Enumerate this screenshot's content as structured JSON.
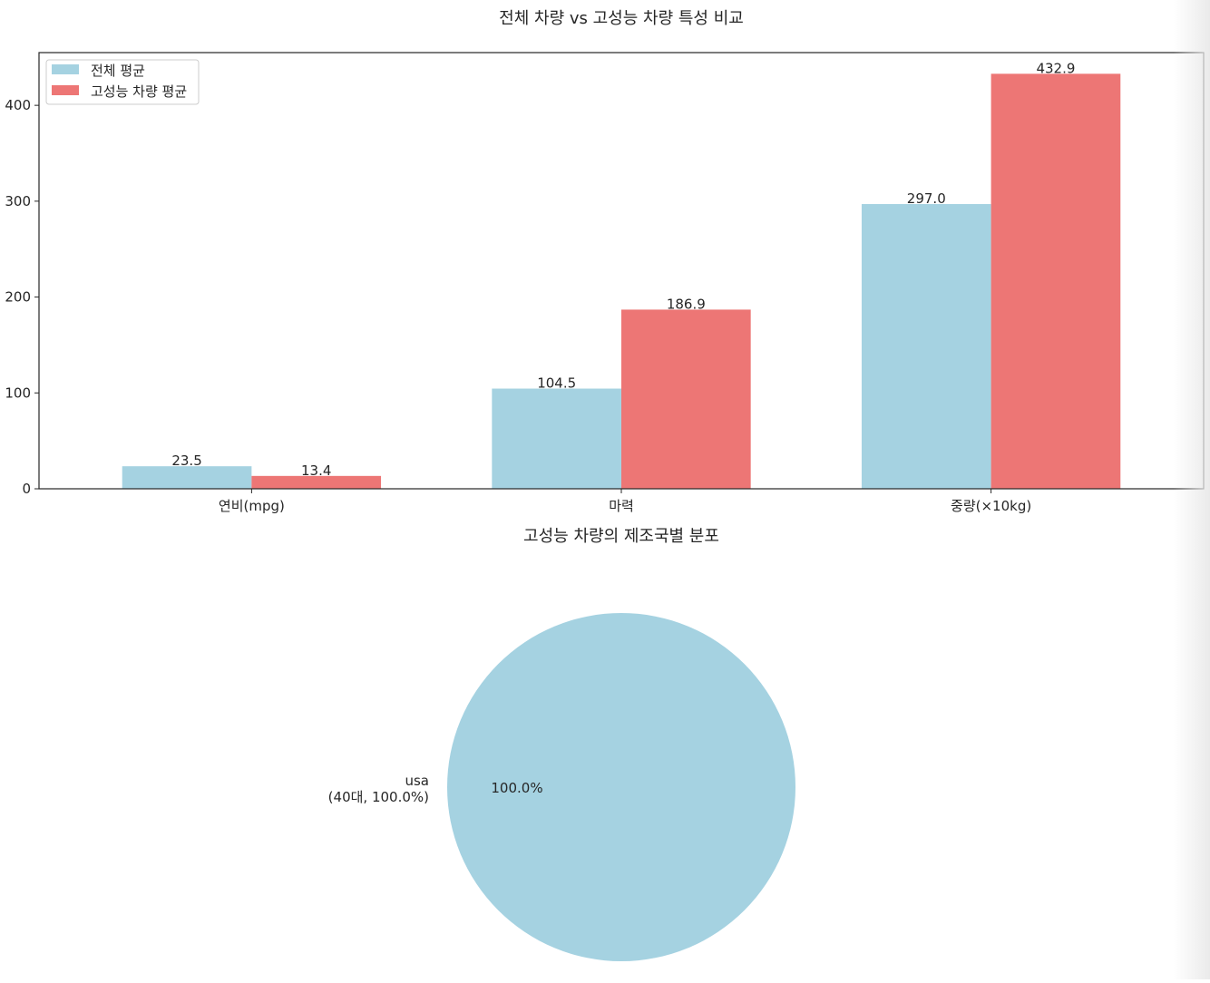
{
  "colors": {
    "overall": "#a5d2e1",
    "high_performance": "#ed7675",
    "axis": "#262626"
  },
  "chart_data": [
    {
      "type": "bar",
      "title": "전체 차량 vs 고성능 차량 특성 비교",
      "categories": [
        "연비(mpg)",
        "마력",
        "중량(×10kg)"
      ],
      "series": [
        {
          "name": "전체 평균",
          "values": [
            23.5,
            104.5,
            297.0
          ]
        },
        {
          "name": "고성능 차량 평균",
          "values": [
            13.4,
            186.9,
            432.9
          ]
        }
      ],
      "ylim": [
        0,
        455
      ],
      "yticks": [
        0,
        100,
        200,
        300,
        400
      ],
      "legend": "top-left",
      "grid": false
    },
    {
      "type": "pie",
      "title": "고성능 차량의 제조국별 분포",
      "slices": [
        {
          "label": "usa",
          "detail": "(40대, 100.0%)",
          "value": 40,
          "pct_label": "100.0%"
        }
      ]
    }
  ]
}
